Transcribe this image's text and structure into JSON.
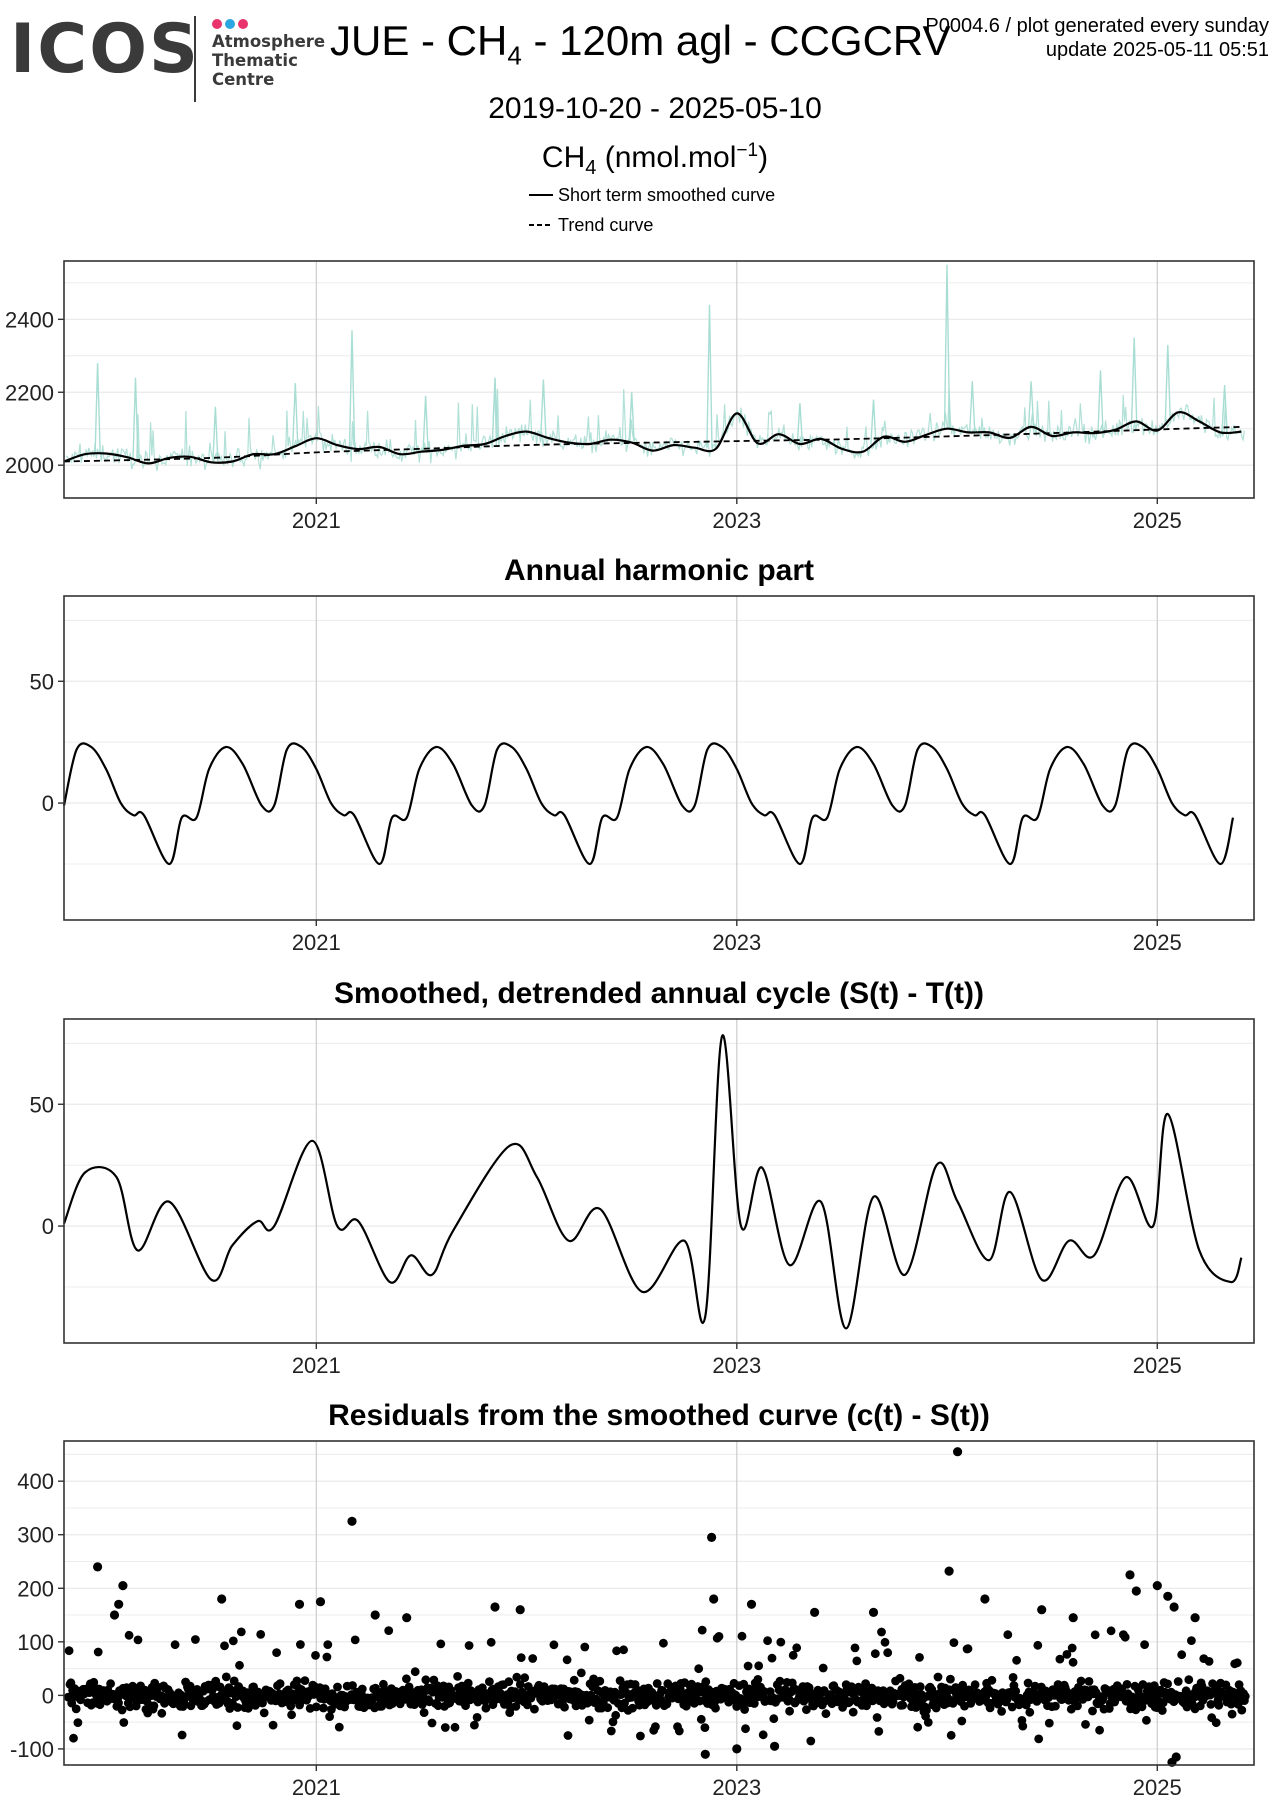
{
  "header": {
    "logo_text": "ICOS",
    "logo_sub": [
      "Atmosphere",
      "Thematic",
      "Centre"
    ],
    "logo_dot_colors": [
      "#e8336d",
      "#2aa6e0",
      "#e8336d"
    ],
    "title_prefix": "JUE - CH",
    "title_sub": "4",
    "title_suffix": " - 120m agl - CCGCRV",
    "date_range": "2019-10-20 - 2025-05-10",
    "meta_line1": "P0004.6 / plot generated every sunday",
    "meta_line2": "update  2025-05-11 05:51",
    "units_prefix": "CH",
    "units_sub": "4",
    "units_mid": " (nmol.mol",
    "units_sup": "−1",
    "units_end": ")"
  },
  "legend": {
    "solid_label": "Short term smoothed curve",
    "dashed_label": "Trend curve"
  },
  "colors": {
    "raw": "#a8ddd3",
    "line": "#000000",
    "grid_major": "#cccccc",
    "grid_minor": "#ececec",
    "frame": "#333333"
  },
  "chart_data": [
    {
      "type": "line",
      "title": "",
      "xlim": [
        2019.8,
        2025.46
      ],
      "ylim": [
        1910,
        2560
      ],
      "yticks": [
        2000,
        2200,
        2400
      ],
      "xticks": [
        2021,
        2023,
        2025
      ],
      "series": [
        {
          "name": "Short term smoothed curve",
          "style": "solid",
          "x": [
            2019.8,
            2019.9,
            2020.0,
            2020.1,
            2020.2,
            2020.3,
            2020.4,
            2020.5,
            2020.6,
            2020.7,
            2020.8,
            2020.9,
            2021.0,
            2021.1,
            2021.2,
            2021.3,
            2021.4,
            2021.5,
            2021.6,
            2021.7,
            2021.8,
            2021.9,
            2022.0,
            2022.1,
            2022.2,
            2022.3,
            2022.4,
            2022.5,
            2022.6,
            2022.7,
            2022.8,
            2022.9,
            2023.0,
            2023.1,
            2023.2,
            2023.3,
            2023.4,
            2023.5,
            2023.6,
            2023.7,
            2023.8,
            2023.9,
            2024.0,
            2024.1,
            2024.2,
            2024.3,
            2024.4,
            2024.5,
            2024.6,
            2024.7,
            2024.8,
            2024.9,
            2025.0,
            2025.1,
            2025.2,
            2025.3,
            2025.4
          ],
          "values": [
            2010,
            2030,
            2032,
            2022,
            2005,
            2020,
            2023,
            2008,
            2010,
            2030,
            2030,
            2052,
            2074,
            2055,
            2044,
            2050,
            2030,
            2037,
            2042,
            2053,
            2058,
            2080,
            2092,
            2075,
            2062,
            2058,
            2070,
            2062,
            2040,
            2055,
            2048,
            2045,
            2142,
            2060,
            2085,
            2058,
            2072,
            2045,
            2037,
            2078,
            2064,
            2083,
            2100,
            2090,
            2090,
            2075,
            2105,
            2080,
            2090,
            2088,
            2097,
            2120,
            2095,
            2145,
            2120,
            2090,
            2092
          ]
        },
        {
          "name": "Trend curve",
          "style": "dashed",
          "x": [
            2019.8,
            2020.5,
            2021.0,
            2021.5,
            2022.0,
            2022.5,
            2023.0,
            2023.5,
            2024.0,
            2024.5,
            2025.0,
            2025.4
          ],
          "values": [
            2010,
            2020,
            2035,
            2045,
            2055,
            2061,
            2066,
            2071,
            2079,
            2088,
            2098,
            2105
          ]
        }
      ],
      "raw_peaks": [
        {
          "x": 2019.96,
          "y": 2280
        },
        {
          "x": 2020.14,
          "y": 2240
        },
        {
          "x": 2020.52,
          "y": 2160
        },
        {
          "x": 2020.9,
          "y": 2225
        },
        {
          "x": 2021.17,
          "y": 2370
        },
        {
          "x": 2021.52,
          "y": 2190
        },
        {
          "x": 2021.85,
          "y": 2240
        },
        {
          "x": 2022.08,
          "y": 2235
        },
        {
          "x": 2022.5,
          "y": 2200
        },
        {
          "x": 2022.87,
          "y": 2440
        },
        {
          "x": 2023.3,
          "y": 2170
        },
        {
          "x": 2023.65,
          "y": 2180
        },
        {
          "x": 2024.0,
          "y": 2550
        },
        {
          "x": 2024.12,
          "y": 2230
        },
        {
          "x": 2024.4,
          "y": 2230
        },
        {
          "x": 2024.73,
          "y": 2260
        },
        {
          "x": 2024.89,
          "y": 2350
        },
        {
          "x": 2025.05,
          "y": 2330
        },
        {
          "x": 2025.32,
          "y": 2220
        }
      ]
    },
    {
      "type": "line",
      "title": "Annual harmonic part",
      "xlim": [
        2019.8,
        2025.46
      ],
      "ylim": [
        -48,
        85
      ],
      "yticks": [
        0,
        50
      ],
      "xticks": [
        2021,
        2023,
        2025
      ],
      "pattern": {
        "start": 2019.8,
        "end": 2025.4,
        "period": 1.0,
        "cycle_offsets": [
          0.0,
          0.06,
          0.13,
          0.2,
          0.27,
          0.33,
          0.38,
          0.5,
          0.56,
          0.63,
          0.69,
          0.77,
          0.85,
          0.94
        ],
        "cycle_values": [
          -1,
          22,
          23,
          14,
          0,
          -5,
          -5,
          -25,
          -6,
          -6,
          14,
          23,
          16,
          -1
        ]
      }
    },
    {
      "type": "line",
      "title": "Smoothed, detrended annual cycle (S(t) - T(t))",
      "xlim": [
        2019.8,
        2025.46
      ],
      "ylim": [
        -48,
        85
      ],
      "yticks": [
        0,
        50
      ],
      "xticks": [
        2021,
        2023,
        2025
      ],
      "x": [
        2019.8,
        2019.9,
        2020.05,
        2020.15,
        2020.3,
        2020.5,
        2020.6,
        2020.72,
        2020.8,
        2020.98,
        2021.1,
        2021.2,
        2021.35,
        2021.45,
        2021.55,
        2021.65,
        2021.92,
        2022.05,
        2022.2,
        2022.35,
        2022.55,
        2022.75,
        2022.85,
        2022.93,
        2023.02,
        2023.12,
        2023.25,
        2023.4,
        2023.52,
        2023.65,
        2023.8,
        2023.95,
        2024.05,
        2024.2,
        2024.3,
        2024.45,
        2024.58,
        2024.7,
        2024.85,
        2024.98,
        2025.05,
        2025.2,
        2025.35,
        2025.4
      ],
      "values": [
        1,
        22,
        20,
        -10,
        10,
        -22,
        -8,
        2,
        0,
        35,
        0,
        2,
        -23,
        -12,
        -20,
        -2,
        33,
        20,
        -6,
        7,
        -27,
        -6,
        -37,
        78,
        0,
        24,
        -16,
        10,
        -42,
        12,
        -20,
        25,
        10,
        -14,
        14,
        -22,
        -6,
        -12,
        20,
        0,
        46,
        -10,
        -23,
        -13
      ]
    },
    {
      "type": "scatter",
      "title": "Residuals from the smoothed curve (c(t) - S(t))",
      "xlim": [
        2019.8,
        2025.46
      ],
      "ylim": [
        -130,
        475
      ],
      "yticks": [
        -100,
        0,
        100,
        200,
        300,
        400
      ],
      "xticks": [
        2021,
        2023,
        2025
      ],
      "outliers": [
        {
          "x": 2019.96,
          "y": 240
        },
        {
          "x": 2020.08,
          "y": 205
        },
        {
          "x": 2020.06,
          "y": 170
        },
        {
          "x": 2020.04,
          "y": 150
        },
        {
          "x": 2020.55,
          "y": 180
        },
        {
          "x": 2020.92,
          "y": 170
        },
        {
          "x": 2021.02,
          "y": 175
        },
        {
          "x": 2021.17,
          "y": 325
        },
        {
          "x": 2021.28,
          "y": 150
        },
        {
          "x": 2021.43,
          "y": 145
        },
        {
          "x": 2021.85,
          "y": 165
        },
        {
          "x": 2021.97,
          "y": 160
        },
        {
          "x": 2022.88,
          "y": 295
        },
        {
          "x": 2022.89,
          "y": 180
        },
        {
          "x": 2023.07,
          "y": 170
        },
        {
          "x": 2023.37,
          "y": 155
        },
        {
          "x": 2023.65,
          "y": 155
        },
        {
          "x": 2024.01,
          "y": 232
        },
        {
          "x": 2024.05,
          "y": 455
        },
        {
          "x": 2024.18,
          "y": 180
        },
        {
          "x": 2024.45,
          "y": 160
        },
        {
          "x": 2024.6,
          "y": 145
        },
        {
          "x": 2024.87,
          "y": 225
        },
        {
          "x": 2024.9,
          "y": 195
        },
        {
          "x": 2025.0,
          "y": 205
        },
        {
          "x": 2025.05,
          "y": 185
        },
        {
          "x": 2025.08,
          "y": 165
        },
        {
          "x": 2025.18,
          "y": 145
        },
        {
          "x": 2023.18,
          "y": -95
        },
        {
          "x": 2022.85,
          "y": -110
        },
        {
          "x": 2025.07,
          "y": -125
        },
        {
          "x": 2025.09,
          "y": -115
        },
        {
          "x": 2023.0,
          "y": -100
        }
      ]
    }
  ]
}
